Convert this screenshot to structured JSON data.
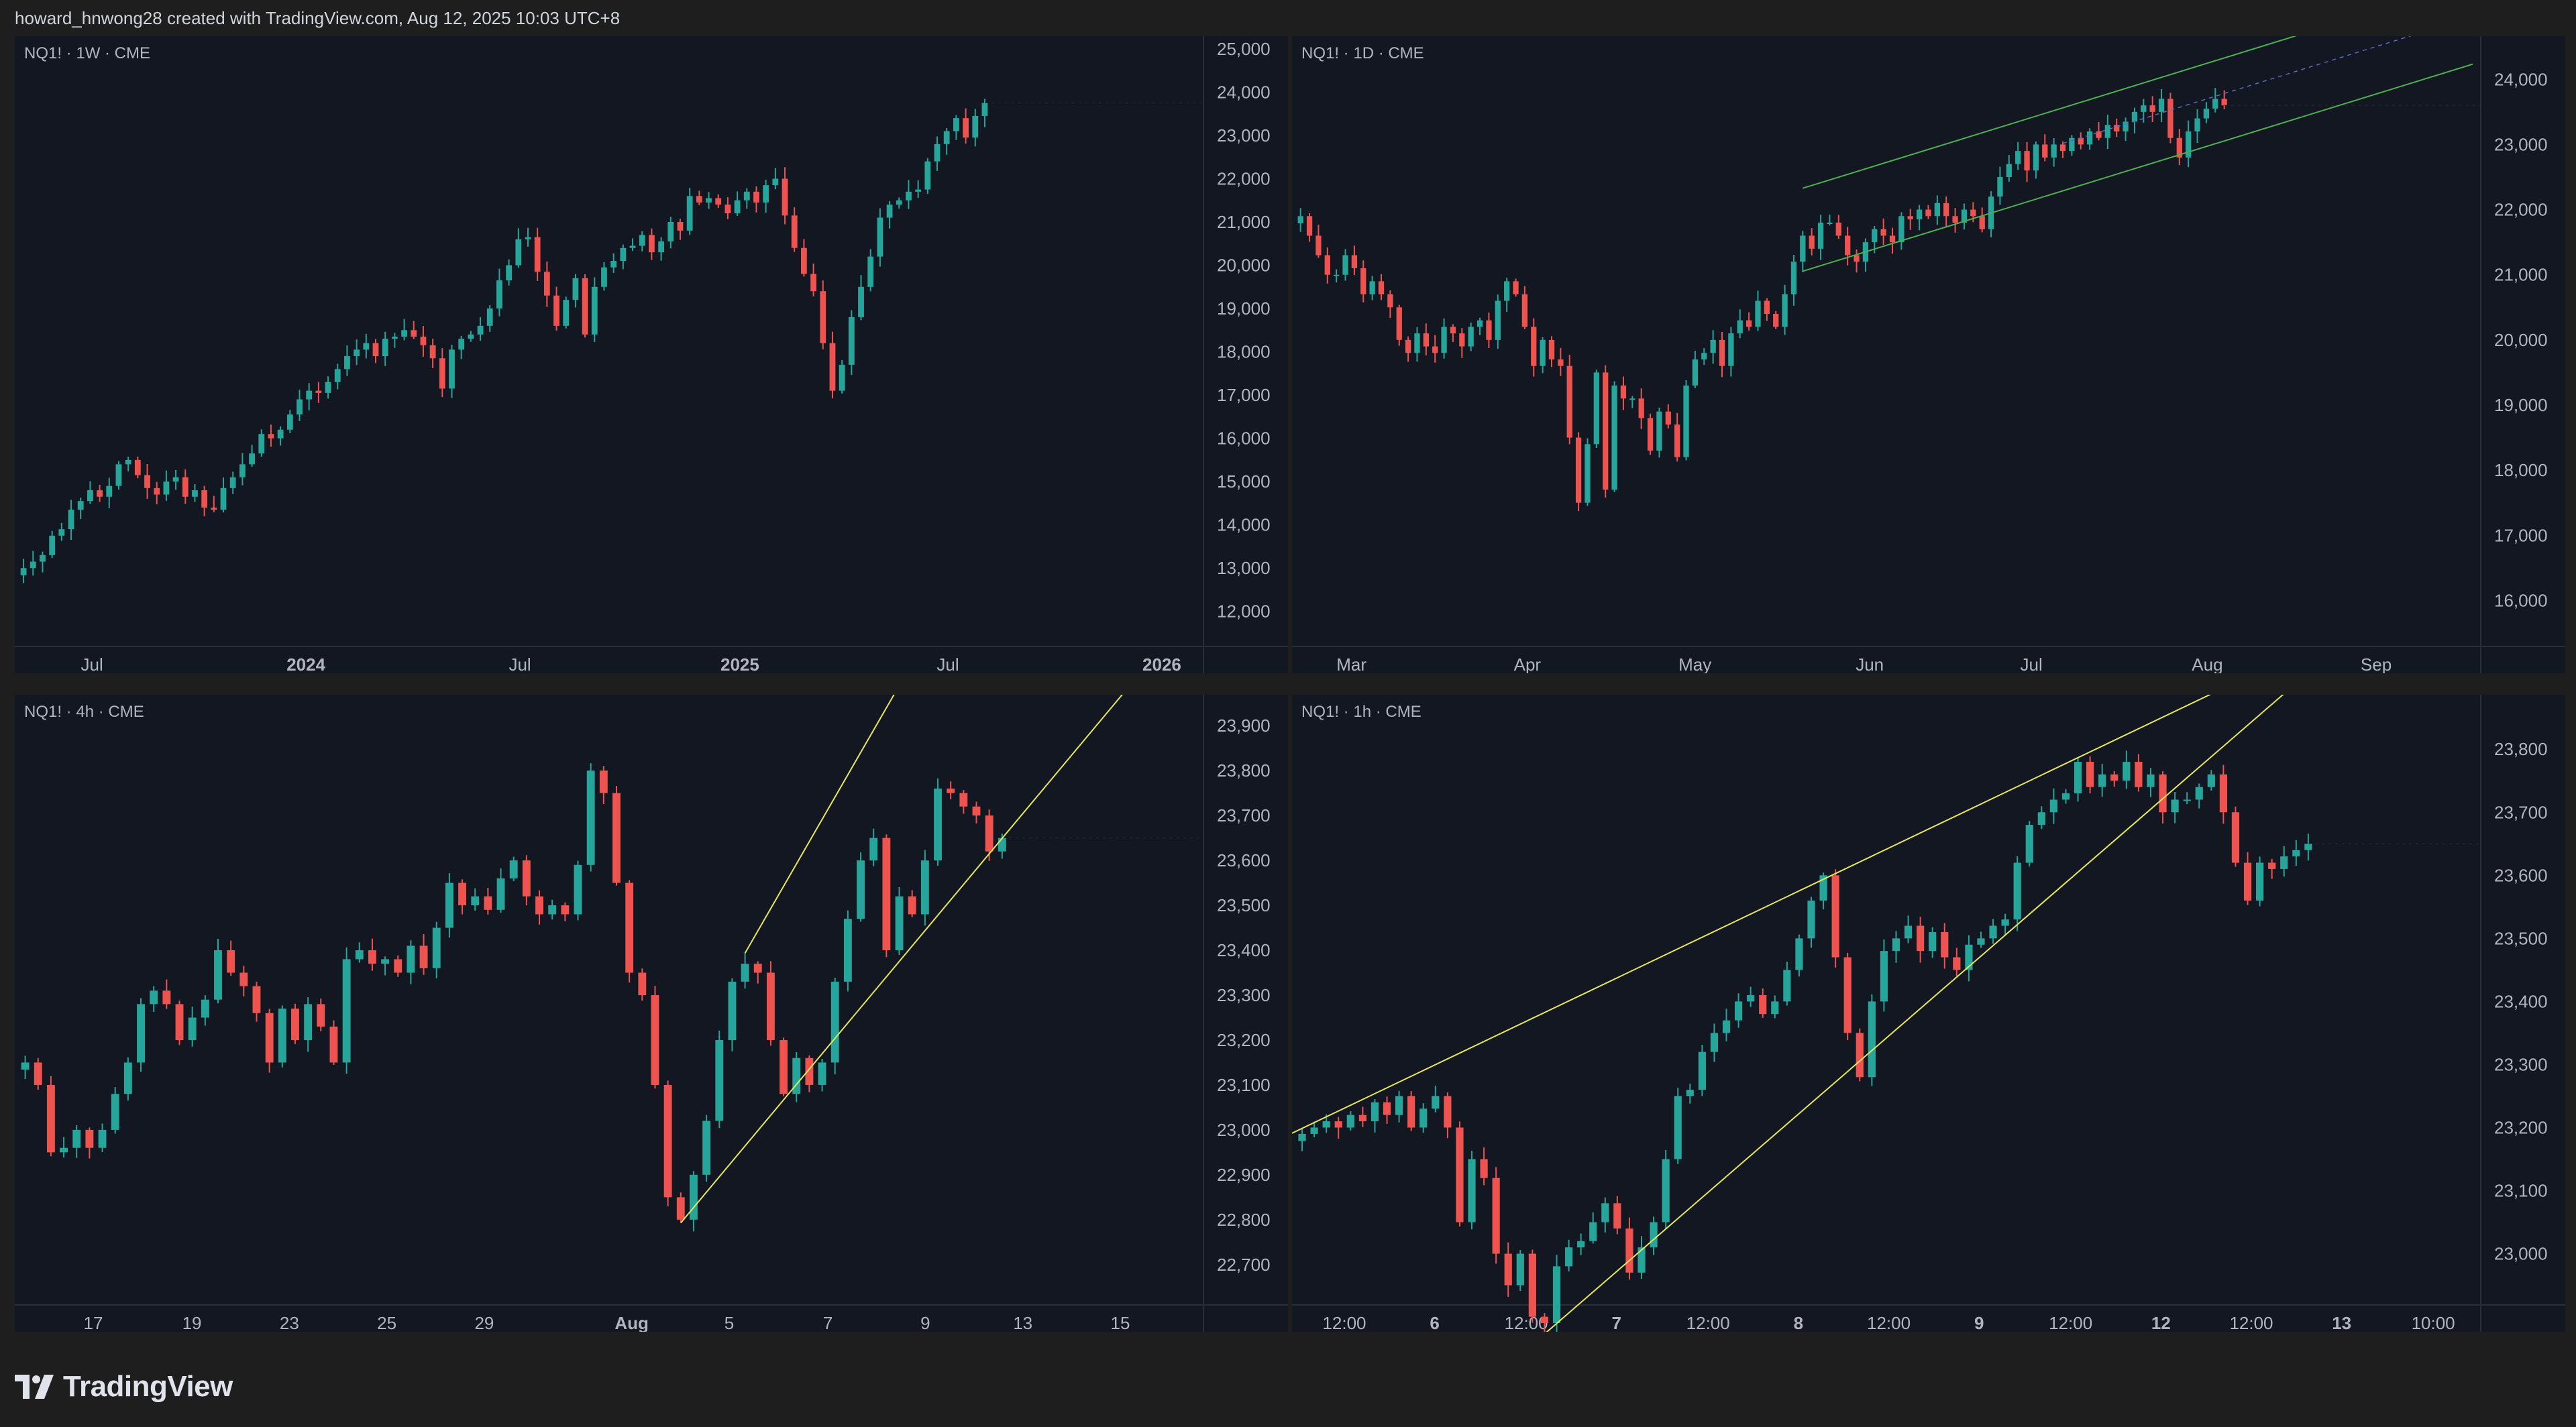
{
  "header": {
    "attribution": "howard_hnwong28 created with TradingView.com, Aug 12, 2025 10:03 UTC+8"
  },
  "brand": {
    "name": "TradingView"
  },
  "colors": {
    "up": "#26a69a",
    "down": "#ef5350",
    "background": "#131722",
    "page": "#1e1e1e",
    "grid_line": "#2a2e39",
    "channel_green": "#4caf50",
    "trendline_yellow": "#e6e65a",
    "text": "#b2b5be"
  },
  "chart_data": [
    {
      "type": "candlestick",
      "label": "NQ1! · 1W · CME",
      "ylim": [
        11500,
        25200
      ],
      "y_ticks": [
        "25,000",
        "24,000",
        "23,000",
        "22,000",
        "21,000",
        "20,000",
        "19,000",
        "18,000",
        "17,000",
        "16,000",
        "15,000",
        "14,000",
        "13,000",
        "12,000"
      ],
      "x_ticks": [
        {
          "label": "Jul",
          "bold": false,
          "at": 0.065
        },
        {
          "label": "2024",
          "bold": true,
          "at": 0.245
        },
        {
          "label": "Jul",
          "bold": false,
          "at": 0.425
        },
        {
          "label": "2025",
          "bold": true,
          "at": 0.61
        },
        {
          "label": "Jul",
          "bold": false,
          "at": 0.785
        },
        {
          "label": "2026",
          "bold": true,
          "at": 0.965
        }
      ],
      "closes": [
        13000,
        13150,
        13300,
        13750,
        13900,
        14350,
        14550,
        14800,
        14650,
        14900,
        15400,
        15500,
        15150,
        14850,
        14700,
        15000,
        15100,
        14650,
        14800,
        14400,
        14350,
        14850,
        15100,
        15400,
        15650,
        16100,
        16000,
        16200,
        16550,
        16900,
        17100,
        17050,
        17300,
        17600,
        17900,
        18050,
        18200,
        17900,
        18300,
        18350,
        18500,
        18350,
        18150,
        17850,
        17150,
        18050,
        18300,
        18400,
        18600,
        19000,
        19650,
        20000,
        20600,
        20650,
        19850,
        19300,
        18600,
        19200,
        19700,
        18400,
        19500,
        19950,
        20100,
        20400,
        20450,
        20700,
        20300,
        20550,
        21000,
        20800,
        21600,
        21450,
        21550,
        21400,
        21200,
        21500,
        21700,
        21450,
        21850,
        22000,
        21150,
        20400,
        19800,
        19400,
        18200,
        17100,
        17700,
        18800,
        19500,
        20200,
        21100,
        21400,
        21500,
        21700,
        21750,
        22400,
        22800,
        23100,
        23400,
        22950,
        23450,
        23750
      ],
      "x_start": 0.0,
      "x_end": 0.82
    },
    {
      "type": "candlestick",
      "label": "NQ1! · 1D · CME",
      "ylim": [
        15500,
        24600
      ],
      "y_ticks": [
        "24,000",
        "23,000",
        "22,000",
        "21,000",
        "20,000",
        "19,000",
        "18,000",
        "17,000",
        "16,000"
      ],
      "x_ticks": [
        {
          "label": "Mar",
          "bold": false,
          "at": 0.05
        },
        {
          "label": "Apr",
          "bold": false,
          "at": 0.198
        },
        {
          "label": "May",
          "bold": false,
          "at": 0.339
        },
        {
          "label": "Jun",
          "bold": false,
          "at": 0.486
        },
        {
          "label": "Jul",
          "bold": false,
          "at": 0.622
        },
        {
          "label": "Aug",
          "bold": false,
          "at": 0.77
        },
        {
          "label": "Sep",
          "bold": false,
          "at": 0.912
        }
      ],
      "closes": [
        21900,
        21600,
        21300,
        21000,
        21000,
        21300,
        21100,
        20700,
        20900,
        20700,
        20500,
        20000,
        19800,
        20100,
        19900,
        19800,
        20200,
        20100,
        19900,
        20200,
        20300,
        20000,
        20600,
        20900,
        20700,
        20200,
        19600,
        20000,
        19700,
        19600,
        18500,
        17500,
        18400,
        19500,
        17700,
        19300,
        19100,
        19100,
        18800,
        18300,
        18900,
        18700,
        18200,
        19300,
        19700,
        19800,
        20000,
        19600,
        20100,
        20300,
        20200,
        20600,
        20400,
        20200,
        20700,
        21200,
        21600,
        21400,
        21800,
        21800,
        21600,
        21300,
        21200,
        21500,
        21700,
        21600,
        21500,
        21900,
        21850,
        22000,
        21900,
        22100,
        21900,
        21800,
        22000,
        21900,
        21700,
        22200,
        22500,
        22700,
        22900,
        22600,
        23000,
        22800,
        23000,
        22900,
        23100,
        23000,
        23200,
        23100,
        23300,
        23200,
        23350,
        23500,
        23600,
        23500,
        23700,
        23100,
        22800,
        23200,
        23400,
        23550,
        23700,
        23600
      ],
      "x_start": 0.0,
      "x_end": 0.788
    },
    {
      "type": "candlestick",
      "label": "NQ1! · 4h · CME",
      "ylim": [
        22640,
        23960
      ],
      "y_ticks": [
        "23,900",
        "23,800",
        "23,700",
        "23,600",
        "23,500",
        "23,400",
        "23,300",
        "23,200",
        "23,100",
        "23,000",
        "22,900",
        "22,800",
        "22,700"
      ],
      "x_ticks": [
        {
          "label": "17",
          "bold": false,
          "at": 0.066
        },
        {
          "label": "19",
          "bold": false,
          "at": 0.149
        },
        {
          "label": "23",
          "bold": false,
          "at": 0.231
        },
        {
          "label": "25",
          "bold": false,
          "at": 0.313
        },
        {
          "label": "29",
          "bold": false,
          "at": 0.395
        },
        {
          "label": "Aug",
          "bold": true,
          "at": 0.519
        },
        {
          "label": "5",
          "bold": false,
          "at": 0.601
        },
        {
          "label": "7",
          "bold": false,
          "at": 0.684
        },
        {
          "label": "9",
          "bold": false,
          "at": 0.766
        },
        {
          "label": "13",
          "bold": false,
          "at": 0.848
        },
        {
          "label": "15",
          "bold": false,
          "at": 0.93
        }
      ],
      "closes": [
        23150,
        23100,
        22950,
        22960,
        23000,
        22960,
        23000,
        23080,
        23150,
        23280,
        23310,
        23280,
        23200,
        23250,
        23290,
        23400,
        23350,
        23320,
        23260,
        23150,
        23270,
        23200,
        23280,
        23230,
        23150,
        23380,
        23400,
        23370,
        23380,
        23350,
        23410,
        23360,
        23450,
        23550,
        23500,
        23520,
        23490,
        23560,
        23600,
        23520,
        23480,
        23500,
        23480,
        23590,
        23800,
        23750,
        23550,
        23350,
        23300,
        23100,
        22850,
        22800,
        22900,
        23020,
        23200,
        23330,
        23370,
        23350,
        23200,
        23080,
        23160,
        23100,
        23150,
        23330,
        23470,
        23600,
        23650,
        23400,
        23520,
        23480,
        23600,
        23760,
        23750,
        23720,
        23700,
        23620,
        23650
      ],
      "x_start": 0.0,
      "x_end": 0.836
    },
    {
      "type": "candlestick",
      "label": "NQ1! · 1h · CME",
      "ylim": [
        22940,
        23880
      ],
      "y_ticks": [
        "23,800",
        "23,700",
        "23,600",
        "23,500",
        "23,400",
        "23,300",
        "23,200",
        "23,100",
        "23,000"
      ],
      "x_ticks": [
        {
          "label": "12:00",
          "bold": false,
          "at": 0.044
        },
        {
          "label": "6",
          "bold": true,
          "at": 0.12
        },
        {
          "label": "12:00",
          "bold": false,
          "at": 0.197
        },
        {
          "label": "7",
          "bold": true,
          "at": 0.273
        },
        {
          "label": "12:00",
          "bold": false,
          "at": 0.35
        },
        {
          "label": "8",
          "bold": true,
          "at": 0.426
        },
        {
          "label": "12:00",
          "bold": false,
          "at": 0.502
        },
        {
          "label": "9",
          "bold": true,
          "at": 0.578
        },
        {
          "label": "12:00",
          "bold": false,
          "at": 0.655
        },
        {
          "label": "12",
          "bold": true,
          "at": 0.731
        },
        {
          "label": "12:00",
          "bold": false,
          "at": 0.807
        },
        {
          "label": "13",
          "bold": true,
          "at": 0.883
        },
        {
          "label": "10:00",
          "bold": false,
          "at": 0.96
        }
      ],
      "closes": [
        23190,
        23200,
        23210,
        23200,
        23220,
        23210,
        23240,
        23220,
        23250,
        23200,
        23230,
        23250,
        23200,
        23050,
        23150,
        23120,
        23000,
        22950,
        23000,
        22900,
        22890,
        22980,
        23010,
        23020,
        23050,
        23080,
        23040,
        22970,
        23010,
        23050,
        23150,
        23250,
        23260,
        23320,
        23350,
        23370,
        23400,
        23410,
        23380,
        23400,
        23450,
        23500,
        23560,
        23600,
        23470,
        23350,
        23280,
        23400,
        23480,
        23500,
        23520,
        23480,
        23510,
        23470,
        23450,
        23490,
        23500,
        23520,
        23530,
        23620,
        23680,
        23700,
        23720,
        23730,
        23780,
        23740,
        23760,
        23750,
        23780,
        23740,
        23760,
        23700,
        23720,
        23720,
        23740,
        23760,
        23700,
        23620,
        23560,
        23620,
        23610,
        23630,
        23640,
        23650
      ],
      "x_start": 0.0,
      "x_end": 0.86
    }
  ]
}
